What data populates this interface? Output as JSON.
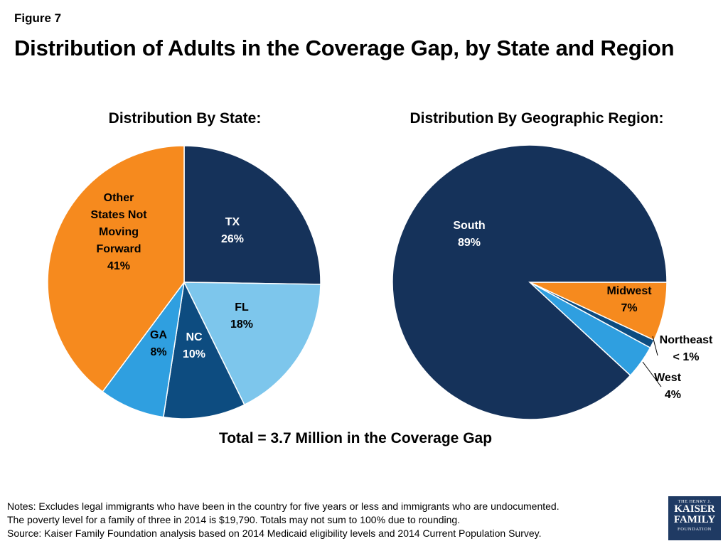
{
  "figure_label": "Figure 7",
  "title": "Distribution of Adults in the Coverage Gap, by State and Region",
  "total_text": "Total = 3.7 Million in the Coverage Gap",
  "notes": [
    "Notes: Excludes legal immigrants who have been in the country for five years or less and immigrants who are undocumented.",
    "The poverty level for a family of three in 2014 is $19,790. Totals may not sum to 100% due to rounding.",
    "Source: Kaiser Family Foundation analysis based on 2014 Medicaid eligibility levels and 2014 Current Population Survey."
  ],
  "logo": {
    "line1": "THE HENRY J.",
    "line2": "KAISER",
    "line3": "FAMILY",
    "line4": "FOUNDATION"
  },
  "chart_data": [
    {
      "type": "pie",
      "title": "Distribution By State:",
      "slices": [
        {
          "name": "TX",
          "value": 26,
          "label_lines": [
            "TX",
            "26%"
          ],
          "color": "#15325a",
          "label_color": "#ffffff"
        },
        {
          "name": "FL",
          "value": 18,
          "label_lines": [
            "FL",
            "18%"
          ],
          "color": "#7dc6ec",
          "label_color": "#000000"
        },
        {
          "name": "NC",
          "value": 10,
          "label_lines": [
            "NC",
            "10%"
          ],
          "color": "#0d4c80",
          "label_color": "#ffffff"
        },
        {
          "name": "GA",
          "value": 8,
          "label_lines": [
            "GA",
            "8%"
          ],
          "color": "#2f9fe0",
          "label_color": "#000000"
        },
        {
          "name": "Other States Not Moving Forward",
          "value": 41,
          "label_lines": [
            "Other",
            "States Not",
            "Moving",
            "Forward",
            "41%"
          ],
          "color": "#f68a1e",
          "label_color": "#000000"
        }
      ]
    },
    {
      "type": "pie",
      "title": "Distribution By Geographic Region:",
      "slices": [
        {
          "name": "Midwest",
          "value": 7,
          "label_lines": [
            "Midwest",
            "7%"
          ],
          "color": "#f68a1e",
          "label_color": "#000000"
        },
        {
          "name": "Northeast",
          "value": 1,
          "label_lines": [
            "Northeast",
            "< 1%"
          ],
          "color": "#0d4c80",
          "label_color": "#000000"
        },
        {
          "name": "West",
          "value": 4,
          "label_lines": [
            "West",
            "4%"
          ],
          "color": "#2f9fe0",
          "label_color": "#000000"
        },
        {
          "name": "South",
          "value": 89,
          "label_lines": [
            "South",
            "89%"
          ],
          "color": "#15325a",
          "label_color": "#ffffff"
        }
      ]
    }
  ]
}
